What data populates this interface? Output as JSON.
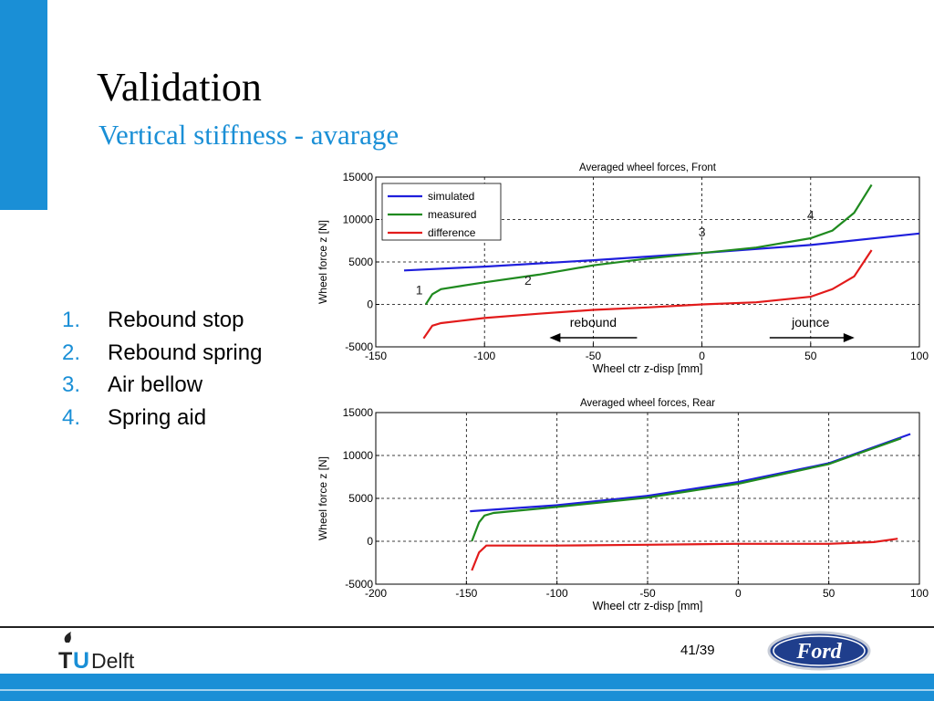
{
  "title": "Validation",
  "subtitle": "Vertical stiffness - avarage",
  "list": [
    {
      "num": "1.",
      "label": "Rebound stop"
    },
    {
      "num": "2.",
      "label": "Rebound spring"
    },
    {
      "num": "3.",
      "label": "Air bellow"
    },
    {
      "num": "4.",
      "label": "Spring aid"
    }
  ],
  "page_number": "41/39",
  "logo_text": "TUDelft",
  "ford_logo_text": "Ford",
  "colors": {
    "accent": "#1a8fd6",
    "simulated": "#1f1fdc",
    "measured": "#1f8a1f",
    "difference": "#e21b1b"
  },
  "chart_data": [
    {
      "type": "line",
      "title": "Averaged wheel forces, Front",
      "xlabel": "Wheel ctr z-disp [mm]",
      "ylabel": "Wheel force z [N]",
      "xlim": [
        -150,
        100
      ],
      "ylim": [
        -5000,
        15000
      ],
      "xticks": [
        -150,
        -100,
        -50,
        0,
        50,
        100
      ],
      "yticks": [
        -5000,
        0,
        5000,
        10000,
        15000
      ],
      "grid": true,
      "legend_position": "top-left",
      "series": [
        {
          "name": "simulated",
          "color": "#1f1fdc",
          "points": [
            [
              -137,
              4000
            ],
            [
              -100,
              4450
            ],
            [
              -50,
              5200
            ],
            [
              0,
              6050
            ],
            [
              50,
              7000
            ],
            [
              100,
              8350
            ]
          ]
        },
        {
          "name": "measured",
          "color": "#1f8a1f",
          "points": [
            [
              -127,
              0
            ],
            [
              -124,
              1200
            ],
            [
              -120,
              1800
            ],
            [
              -110,
              2200
            ],
            [
              -100,
              2600
            ],
            [
              -75,
              3500
            ],
            [
              -50,
              4600
            ],
            [
              -25,
              5400
            ],
            [
              0,
              6050
            ],
            [
              25,
              6700
            ],
            [
              50,
              7800
            ],
            [
              60,
              8700
            ],
            [
              70,
              10800
            ],
            [
              78,
              14100
            ]
          ]
        },
        {
          "name": "difference",
          "color": "#e21b1b",
          "points": [
            [
              -128,
              -4000
            ],
            [
              -124,
              -2500
            ],
            [
              -120,
              -2200
            ],
            [
              -110,
              -1900
            ],
            [
              -100,
              -1600
            ],
            [
              -75,
              -1100
            ],
            [
              -50,
              -650
            ],
            [
              -25,
              -350
            ],
            [
              0,
              0
            ],
            [
              25,
              250
            ],
            [
              50,
              900
            ],
            [
              60,
              1800
            ],
            [
              70,
              3300
            ],
            [
              78,
              6400
            ]
          ]
        }
      ],
      "annotations": [
        {
          "text": "1",
          "x": -130,
          "y": 1200
        },
        {
          "text": "2",
          "x": -80,
          "y": 2300
        },
        {
          "text": "3",
          "x": 0,
          "y": 8000
        },
        {
          "text": "4",
          "x": 50,
          "y": 10000
        },
        {
          "text": "rebound",
          "x": -50,
          "y": -2200
        },
        {
          "text": "jounce",
          "x": 50,
          "y": -2200
        }
      ]
    },
    {
      "type": "line",
      "title": "Averaged wheel forces, Rear",
      "xlabel": "Wheel ctr z-disp [mm]",
      "ylabel": "Wheel force z [N]",
      "xlim": [
        -200,
        100
      ],
      "ylim": [
        -5000,
        15000
      ],
      "xticks": [
        -200,
        -150,
        -100,
        -50,
        0,
        50,
        100
      ],
      "yticks": [
        -5000,
        0,
        5000,
        10000,
        15000
      ],
      "grid": true,
      "series": [
        {
          "name": "simulated",
          "color": "#1f1fdc",
          "points": [
            [
              -148,
              3500
            ],
            [
              -100,
              4200
            ],
            [
              -50,
              5300
            ],
            [
              0,
              6900
            ],
            [
              50,
              9100
            ],
            [
              95,
              12500
            ]
          ]
        },
        {
          "name": "measured",
          "color": "#1f8a1f",
          "points": [
            [
              -147,
              0
            ],
            [
              -143,
              2200
            ],
            [
              -140,
              3000
            ],
            [
              -135,
              3300
            ],
            [
              -100,
              4000
            ],
            [
              -50,
              5100
            ],
            [
              0,
              6700
            ],
            [
              50,
              9000
            ],
            [
              90,
              12000
            ]
          ]
        },
        {
          "name": "difference",
          "color": "#e21b1b",
          "points": [
            [
              -147,
              -3400
            ],
            [
              -143,
              -1300
            ],
            [
              -139,
              -500
            ],
            [
              -100,
              -500
            ],
            [
              -50,
              -400
            ],
            [
              0,
              -300
            ],
            [
              50,
              -300
            ],
            [
              75,
              -100
            ],
            [
              88,
              300
            ]
          ]
        }
      ]
    }
  ]
}
